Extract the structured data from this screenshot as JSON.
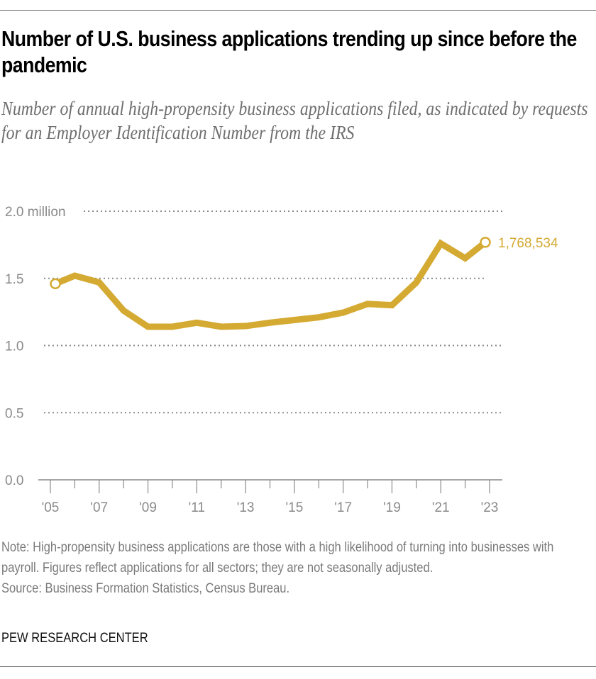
{
  "title": "Number of U.S. business applications trending up since before the pandemic",
  "subtitle": "Number of annual high-propensity business applications filed, as indicated by requests for an Employer Identification Number from the IRS",
  "note": "Note: High-propensity business applications are those with a high likelihood of turning into businesses with payroll. Figures reflect applications for all sectors; they are not seasonally adjusted.",
  "source": "Source: Business Formation Statistics, Census Bureau.",
  "brand": "PEW RESEARCH CENTER",
  "colors": {
    "line": "#d4aa32",
    "grid": "#8a8a8a",
    "axis": "#8a8a8a",
    "text_muted": "#7a7a7a"
  },
  "chart_data": {
    "type": "line",
    "title": "Number of U.S. business applications trending up since before the pandemic",
    "subtitle": "Number of annual high-propensity business applications filed, as indicated by requests for an Employer Identification Number from the IRS",
    "xlabel": "",
    "ylabel": "",
    "x": [
      2005,
      2006,
      2007,
      2008,
      2009,
      2010,
      2011,
      2012,
      2013,
      2014,
      2015,
      2016,
      2017,
      2018,
      2019,
      2020,
      2021,
      2022,
      2023
    ],
    "series": [
      {
        "name": "High-propensity business applications (millions)",
        "values": [
          1.46,
          1.52,
          1.47,
          1.26,
          1.14,
          1.14,
          1.17,
          1.14,
          1.145,
          1.17,
          1.19,
          1.21,
          1.245,
          1.31,
          1.3,
          1.47,
          1.76,
          1.65,
          1.768534
        ]
      }
    ],
    "ylim": [
      0,
      2.0
    ],
    "xlim": [
      2005,
      2023
    ],
    "y_ticks": [
      {
        "value": 0.0,
        "label": "0.0"
      },
      {
        "value": 0.5,
        "label": "0.5"
      },
      {
        "value": 1.0,
        "label": "1.0"
      },
      {
        "value": 1.5,
        "label": "1.5"
      },
      {
        "value": 2.0,
        "label": "2.0 million"
      }
    ],
    "x_ticks": [
      {
        "value": 2005,
        "label": "'05"
      },
      {
        "value": 2007,
        "label": "'07"
      },
      {
        "value": 2009,
        "label": "'09"
      },
      {
        "value": 2011,
        "label": "'11"
      },
      {
        "value": 2013,
        "label": "'13"
      },
      {
        "value": 2015,
        "label": "'15"
      },
      {
        "value": 2017,
        "label": "'17"
      },
      {
        "value": 2019,
        "label": "'19"
      },
      {
        "value": 2021,
        "label": "'21"
      },
      {
        "value": 2023,
        "label": "'23"
      }
    ],
    "minor_x_ticks": [
      2006,
      2008,
      2010,
      2012,
      2014,
      2016,
      2018,
      2020,
      2022
    ],
    "annotations": [
      {
        "x": 2023,
        "value": 1768534,
        "label": "1,768,534"
      }
    ],
    "markers": [
      {
        "x": 2005,
        "style": "hollow-circle"
      },
      {
        "x": 2023,
        "style": "hollow-circle"
      }
    ],
    "grid": true,
    "grid_style": "dotted horizontal",
    "legend": "none"
  }
}
